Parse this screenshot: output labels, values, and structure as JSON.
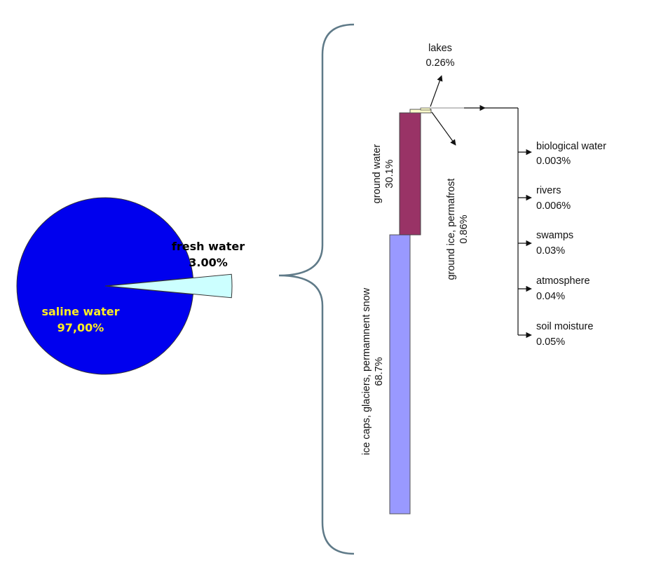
{
  "chart_data": [
    {
      "type": "pie",
      "slices": [
        {
          "label": "saline water",
          "value_text": "97,00%",
          "value": 97.0,
          "color": "#0000ee",
          "label_color": "#ffee22"
        },
        {
          "label": "fresh water",
          "value_text": "3.00%",
          "value": 3.0,
          "color": "#ccffff",
          "label_color": "#111111"
        }
      ]
    },
    {
      "type": "bar",
      "orientation": "stacked-column",
      "segments": [
        {
          "label": "ice caps, glaciers, permamnent snow",
          "value_text": "68.7%",
          "value": 68.7,
          "color": "#9999ff"
        },
        {
          "label": "ground water",
          "value_text": "30.1%",
          "value": 30.1,
          "color": "#993366"
        },
        {
          "label": "ground ice, permafrost",
          "value_text": "0.86%",
          "value": 0.86,
          "color": "#ffffcc"
        },
        {
          "label": "lakes",
          "value_text": "0.26%",
          "value": 0.26,
          "color": "#ffffcc"
        }
      ]
    },
    {
      "type": "list",
      "items": [
        {
          "label": "biological water",
          "value_text": "0.003%",
          "value": 0.003
        },
        {
          "label": "rivers",
          "value_text": "0.006%",
          "value": 0.006
        },
        {
          "label": "swamps",
          "value_text": "0.03%",
          "value": 0.03
        },
        {
          "label": "atmosphere",
          "value_text": "0.04%",
          "value": 0.04
        },
        {
          "label": "soil moisture",
          "value_text": "0.05%",
          "value": 0.05
        }
      ]
    }
  ]
}
